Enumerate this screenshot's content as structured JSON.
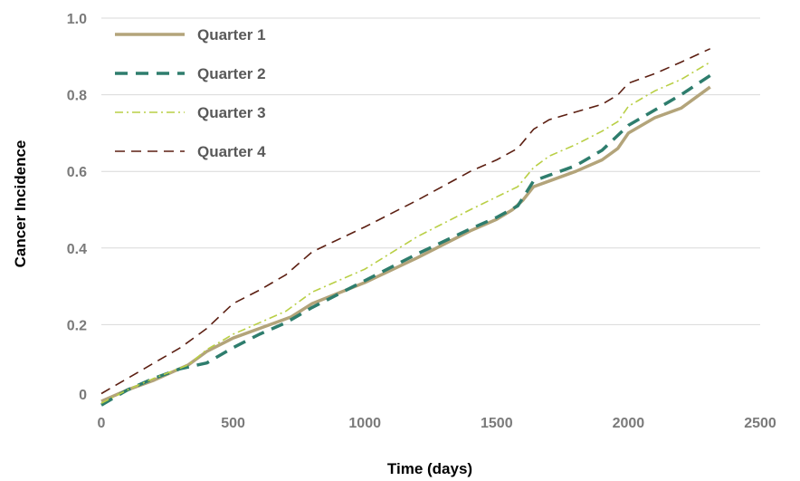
{
  "chart_data": {
    "type": "line",
    "title": "",
    "xlabel": "Time (days)",
    "ylabel": "Cancer Incidence",
    "xlim": [
      0,
      2500
    ],
    "ylim": [
      0,
      1.0
    ],
    "x_ticks": [
      0,
      500,
      1000,
      1500,
      2000,
      2500
    ],
    "y_ticks": [
      0,
      0.2,
      0.4,
      0.6,
      0.8,
      1.0
    ],
    "x_tick_labels": [
      "0",
      "500",
      "1000",
      "1500",
      "2000",
      "2500"
    ],
    "y_tick_labels": [
      "0",
      "0.2",
      "0.4",
      "0.6",
      "0.8",
      "1.0"
    ],
    "grid": "horizontal",
    "legend_position": "top-left",
    "series": [
      {
        "name": "Quarter 1",
        "color": "#b3a47a",
        "style": "solid",
        "points": [
          [
            0,
            0.0
          ],
          [
            100,
            0.03
          ],
          [
            200,
            0.055
          ],
          [
            330,
            0.095
          ],
          [
            400,
            0.13
          ],
          [
            500,
            0.165
          ],
          [
            600,
            0.19
          ],
          [
            720,
            0.22
          ],
          [
            800,
            0.255
          ],
          [
            1000,
            0.31
          ],
          [
            1200,
            0.375
          ],
          [
            1400,
            0.445
          ],
          [
            1500,
            0.475
          ],
          [
            1560,
            0.5
          ],
          [
            1600,
            0.525
          ],
          [
            1640,
            0.56
          ],
          [
            1700,
            0.575
          ],
          [
            1800,
            0.6
          ],
          [
            1900,
            0.63
          ],
          [
            1960,
            0.66
          ],
          [
            2000,
            0.7
          ],
          [
            2100,
            0.74
          ],
          [
            2200,
            0.765
          ],
          [
            2310,
            0.82
          ]
        ]
      },
      {
        "name": "Quarter 2",
        "color": "#2e7d6d",
        "style": "dash",
        "points": [
          [
            0,
            -0.01
          ],
          [
            100,
            0.03
          ],
          [
            200,
            0.06
          ],
          [
            300,
            0.085
          ],
          [
            400,
            0.1
          ],
          [
            500,
            0.14
          ],
          [
            600,
            0.175
          ],
          [
            700,
            0.205
          ],
          [
            800,
            0.245
          ],
          [
            1000,
            0.315
          ],
          [
            1200,
            0.385
          ],
          [
            1400,
            0.45
          ],
          [
            1500,
            0.48
          ],
          [
            1580,
            0.51
          ],
          [
            1640,
            0.575
          ],
          [
            1700,
            0.59
          ],
          [
            1800,
            0.615
          ],
          [
            1900,
            0.655
          ],
          [
            2000,
            0.72
          ],
          [
            2100,
            0.76
          ],
          [
            2200,
            0.8
          ],
          [
            2310,
            0.85
          ]
        ]
      },
      {
        "name": "Quarter 3",
        "color": "#b9cf45",
        "style": "dashdot",
        "points": [
          [
            0,
            -0.005
          ],
          [
            100,
            0.03
          ],
          [
            200,
            0.06
          ],
          [
            330,
            0.095
          ],
          [
            400,
            0.135
          ],
          [
            500,
            0.175
          ],
          [
            600,
            0.205
          ],
          [
            700,
            0.235
          ],
          [
            800,
            0.285
          ],
          [
            1000,
            0.345
          ],
          [
            1200,
            0.43
          ],
          [
            1400,
            0.5
          ],
          [
            1580,
            0.56
          ],
          [
            1640,
            0.61
          ],
          [
            1700,
            0.64
          ],
          [
            1800,
            0.67
          ],
          [
            1900,
            0.705
          ],
          [
            1960,
            0.73
          ],
          [
            2000,
            0.77
          ],
          [
            2100,
            0.81
          ],
          [
            2200,
            0.84
          ],
          [
            2310,
            0.885
          ]
        ]
      },
      {
        "name": "Quarter 4",
        "color": "#5c1f12",
        "style": "longdash",
        "points": [
          [
            0,
            0.02
          ],
          [
            100,
            0.06
          ],
          [
            200,
            0.1
          ],
          [
            300,
            0.14
          ],
          [
            400,
            0.19
          ],
          [
            500,
            0.255
          ],
          [
            600,
            0.29
          ],
          [
            700,
            0.33
          ],
          [
            800,
            0.39
          ],
          [
            1000,
            0.455
          ],
          [
            1200,
            0.525
          ],
          [
            1400,
            0.6
          ],
          [
            1500,
            0.63
          ],
          [
            1580,
            0.66
          ],
          [
            1640,
            0.71
          ],
          [
            1700,
            0.735
          ],
          [
            1800,
            0.755
          ],
          [
            1900,
            0.775
          ],
          [
            1960,
            0.8
          ],
          [
            2000,
            0.83
          ],
          [
            2100,
            0.855
          ],
          [
            2200,
            0.885
          ],
          [
            2310,
            0.92
          ]
        ]
      }
    ]
  }
}
